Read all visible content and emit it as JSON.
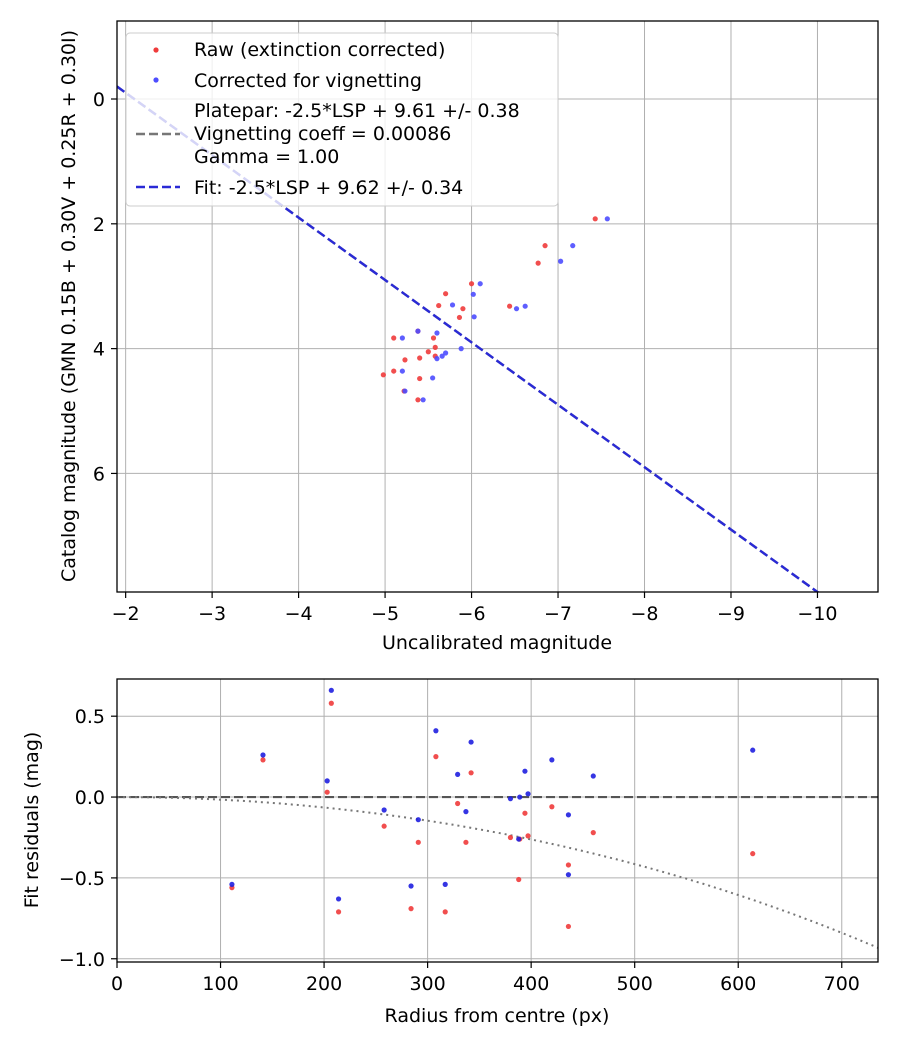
{
  "chart_data": [
    {
      "type": "scatter",
      "xlabel": "Uncalibrated magnitude",
      "ylabel": "Catalog magnitude (GMN 0.15B + 0.30V + 0.25R + 0.30I)",
      "xlim": [
        -1.9,
        -10.7
      ],
      "ylim": [
        7.9,
        -1.25
      ],
      "grid": true,
      "x_ticks": [
        -2,
        -3,
        -4,
        -5,
        -6,
        -7,
        -8,
        -9,
        -10
      ],
      "x_tick_labels": [
        "−2",
        "−3",
        "−4",
        "−5",
        "−6",
        "−7",
        "−8",
        "−9",
        "−10"
      ],
      "y_ticks": [
        0,
        2,
        4,
        6
      ],
      "y_tick_labels": [
        "0",
        "2",
        "4",
        "6"
      ],
      "legend": {
        "location": "top-left",
        "entries": [
          "Raw (extinction corrected)",
          "Corrected for vignetting",
          "Platepar: -2.5*LSP + 9.61 +/- 0.38",
          "Vignetting coeff = 0.00086",
          "Gamma = 1.00",
          "Fit: -2.5*LSP + 9.62 +/- 0.34"
        ]
      },
      "series": [
        {
          "name": "Raw (extinction corrected)",
          "kind": "scatter",
          "color": "#ef3b3b",
          "points": [
            [
              -4.98,
              4.42
            ],
            [
              -5.1,
              4.36
            ],
            [
              -5.1,
              3.83
            ],
            [
              -5.23,
              4.18
            ],
            [
              -5.22,
              4.68
            ],
            [
              -5.4,
              4.15
            ],
            [
              -5.38,
              4.82
            ],
            [
              -5.4,
              4.48
            ],
            [
              -5.38,
              3.72
            ],
            [
              -5.5,
              4.05
            ],
            [
              -5.56,
              3.83
            ],
            [
              -5.58,
              3.98
            ],
            [
              -5.58,
              4.12
            ],
            [
              -5.62,
              3.31
            ],
            [
              -5.7,
              3.12
            ],
            [
              -5.86,
              3.5
            ],
            [
              -5.9,
              3.36
            ],
            [
              -6.0,
              2.96
            ],
            [
              -6.44,
              3.32
            ],
            [
              -6.77,
              2.63
            ],
            [
              -6.85,
              2.35
            ],
            [
              -7.43,
              1.92
            ]
          ]
        },
        {
          "name": "Corrected for vignetting",
          "kind": "scatter",
          "color": "#4d4dff",
          "points": [
            [
              -5.2,
              3.83
            ],
            [
              -5.2,
              4.36
            ],
            [
              -5.23,
              4.68
            ],
            [
              -5.38,
              3.72
            ],
            [
              -5.44,
              4.82
            ],
            [
              -5.55,
              4.47
            ],
            [
              -5.6,
              3.75
            ],
            [
              -5.6,
              4.16
            ],
            [
              -5.66,
              4.12
            ],
            [
              -5.7,
              4.07
            ],
            [
              -5.78,
              3.3
            ],
            [
              -5.88,
              4.0
            ],
            [
              -6.02,
              3.13
            ],
            [
              -6.03,
              3.49
            ],
            [
              -6.1,
              2.96
            ],
            [
              -6.52,
              3.36
            ],
            [
              -6.62,
              3.32
            ],
            [
              -7.03,
              2.6
            ],
            [
              -7.17,
              2.35
            ],
            [
              -7.57,
              1.92
            ]
          ]
        },
        {
          "name": "Platepar: -2.5*LSP + 9.61 +/- 0.38",
          "kind": "line",
          "color": "#777777",
          "style": "dashed",
          "slope": -1,
          "intercept": -2.1
        },
        {
          "name": "Fit: -2.5*LSP + 9.62 +/- 0.34",
          "kind": "line",
          "color": "#2a2ad6",
          "style": "dashed",
          "slope": -1,
          "intercept": -2.1
        }
      ]
    },
    {
      "type": "scatter",
      "xlabel": "Radius from centre (px)",
      "ylabel": "Fit residuals (mag)",
      "xlim": [
        0,
        735
      ],
      "ylim": [
        -1.02,
        0.73
      ],
      "grid": true,
      "x_ticks": [
        0,
        100,
        200,
        300,
        400,
        500,
        600,
        700
      ],
      "x_tick_labels": [
        "0",
        "100",
        "200",
        "300",
        "400",
        "500",
        "600",
        "700"
      ],
      "y_ticks": [
        0.5,
        0.0,
        -0.5,
        -1.0
      ],
      "y_tick_labels": [
        "0.5",
        "0.0",
        "−0.5",
        "−1.0"
      ],
      "series": [
        {
          "name": "Raw (extinction corrected)",
          "kind": "scatter",
          "color": "#ef3b3b",
          "points": [
            [
              111,
              -0.56
            ],
            [
              141,
              0.23
            ],
            [
              203,
              0.03
            ],
            [
              207,
              0.58
            ],
            [
              214,
              -0.71
            ],
            [
              258,
              -0.18
            ],
            [
              284,
              -0.69
            ],
            [
              291,
              -0.28
            ],
            [
              308,
              0.25
            ],
            [
              317,
              -0.71
            ],
            [
              329,
              -0.04
            ],
            [
              337,
              -0.28
            ],
            [
              342,
              0.15
            ],
            [
              380,
              -0.25
            ],
            [
              388,
              -0.51
            ],
            [
              389,
              -0.26
            ],
            [
              394,
              -0.1
            ],
            [
              397,
              -0.24
            ],
            [
              420,
              -0.06
            ],
            [
              436,
              -0.42
            ],
            [
              436,
              -0.8
            ],
            [
              460,
              -0.22
            ],
            [
              614,
              -0.35
            ]
          ]
        },
        {
          "name": "Corrected for vignetting",
          "kind": "scatter",
          "color": "#1f1fe0",
          "points": [
            [
              111,
              -0.54
            ],
            [
              141,
              0.26
            ],
            [
              203,
              0.1
            ],
            [
              207,
              0.66
            ],
            [
              214,
              -0.63
            ],
            [
              258,
              -0.08
            ],
            [
              284,
              -0.55
            ],
            [
              291,
              -0.14
            ],
            [
              308,
              0.41
            ],
            [
              317,
              -0.54
            ],
            [
              329,
              0.14
            ],
            [
              337,
              -0.09
            ],
            [
              342,
              0.34
            ],
            [
              380,
              -0.01
            ],
            [
              388,
              -0.26
            ],
            [
              389,
              0.0
            ],
            [
              394,
              0.16
            ],
            [
              397,
              0.02
            ],
            [
              420,
              0.23
            ],
            [
              436,
              -0.11
            ],
            [
              436,
              -0.48
            ],
            [
              460,
              0.13
            ],
            [
              614,
              0.29
            ]
          ]
        },
        {
          "name": "Zero residual",
          "kind": "hline",
          "value": 0.0,
          "color": "#555555",
          "style": "dashed"
        },
        {
          "name": "Vignetting correction",
          "kind": "curve",
          "color": "#777777",
          "style": "dotted",
          "coefficient": 0.00086
        }
      ]
    }
  ]
}
